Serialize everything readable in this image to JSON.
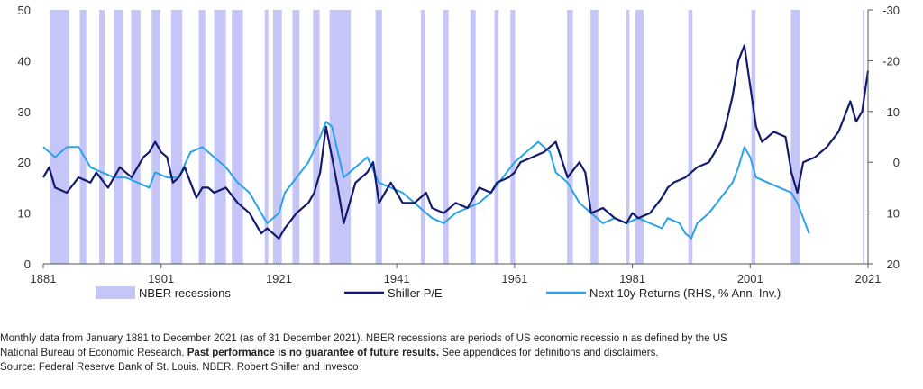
{
  "chart_data": {
    "type": "line",
    "title": "",
    "x_range": [
      1881,
      2021
    ],
    "x_ticks": [
      "1881",
      "1901",
      "1921",
      "1941",
      "1961",
      "1981",
      "2001",
      "2021"
    ],
    "y_left": {
      "range": [
        0,
        50
      ],
      "ticks": [
        "0",
        "10",
        "20",
        "30",
        "40",
        "50"
      ]
    },
    "y_right": {
      "range": [
        20,
        -30
      ],
      "inverted": true,
      "ticks": [
        "20",
        "10",
        "0",
        "-10",
        "-20",
        "-30"
      ]
    },
    "grid": false,
    "legend_position": "bottom",
    "legend": {
      "recessions": "NBER recessions",
      "pe": "Shiller P/E",
      "returns": "Next 10y Returns (RHS, % Ann, Inv.)"
    },
    "colors": {
      "recessions": "#c5c5f7",
      "pe": "#141a6e",
      "returns": "#2aa3e8"
    },
    "recessions": [
      [
        1882.2,
        1885.4
      ],
      [
        1887.2,
        1888.3
      ],
      [
        1890.5,
        1891.4
      ],
      [
        1893.0,
        1894.5
      ],
      [
        1895.9,
        1897.5
      ],
      [
        1899.4,
        1900.9
      ],
      [
        1902.7,
        1904.6
      ],
      [
        1907.4,
        1908.5
      ],
      [
        1910.0,
        1912.0
      ],
      [
        1913.0,
        1914.9
      ],
      [
        1918.6,
        1919.2
      ],
      [
        1920.0,
        1921.5
      ],
      [
        1923.3,
        1924.5
      ],
      [
        1926.8,
        1927.9
      ],
      [
        1929.6,
        1933.2
      ],
      [
        1937.4,
        1938.5
      ],
      [
        1945.1,
        1945.8
      ],
      [
        1948.9,
        1949.8
      ],
      [
        1953.5,
        1954.4
      ],
      [
        1957.6,
        1958.3
      ],
      [
        1960.3,
        1961.1
      ],
      [
        1969.9,
        1970.9
      ],
      [
        1973.9,
        1975.2
      ],
      [
        1980.0,
        1980.5
      ],
      [
        1981.5,
        1982.9
      ],
      [
        1990.5,
        1991.2
      ],
      [
        2001.2,
        2001.9
      ],
      [
        2007.9,
        2009.5
      ],
      [
        2020.1,
        2020.4
      ]
    ],
    "series": [
      {
        "name": "Shiller P/E",
        "axis": "left",
        "x": [
          1881,
          1882,
          1883,
          1885,
          1887,
          1889,
          1890,
          1892,
          1894,
          1896,
          1898,
          1899,
          1900,
          1901,
          1902,
          1903,
          1904,
          1905,
          1906,
          1907,
          1908,
          1909,
          1910,
          1912,
          1914,
          1916,
          1918,
          1919,
          1920,
          1921,
          1922,
          1924,
          1926,
          1927,
          1928,
          1929,
          1930,
          1931,
          1932,
          1933,
          1934,
          1936,
          1937,
          1938,
          1940,
          1942,
          1944,
          1946,
          1947,
          1949,
          1951,
          1953,
          1955,
          1957,
          1958,
          1960,
          1961,
          1962,
          1964,
          1966,
          1968,
          1970,
          1972,
          1973,
          1974,
          1976,
          1978,
          1980,
          1981,
          1982,
          1984,
          1986,
          1987,
          1988,
          1990,
          1992,
          1994,
          1996,
          1997,
          1998,
          1999,
          2000,
          2001,
          2002,
          2003,
          2005,
          2007,
          2008,
          2009,
          2010,
          2012,
          2014,
          2016,
          2017,
          2018,
          2019,
          2020,
          2021
        ],
        "values": [
          17,
          19,
          15,
          14,
          17,
          16,
          18,
          15,
          19,
          17,
          21,
          22,
          24,
          22,
          21,
          16,
          17,
          19,
          16,
          13,
          15,
          15,
          14,
          15,
          12,
          10,
          6,
          7,
          6,
          5,
          7,
          10,
          12,
          14,
          18,
          27,
          21,
          15,
          8,
          12,
          16,
          18,
          20,
          12,
          16,
          12,
          12,
          14,
          11,
          10,
          12,
          11,
          15,
          14,
          16,
          17,
          18,
          20,
          21,
          22,
          24,
          17,
          20,
          18,
          10,
          11,
          9,
          8,
          10,
          9,
          10,
          13,
          15,
          16,
          17,
          19,
          20,
          24,
          28,
          33,
          40,
          43,
          35,
          27,
          24,
          26,
          25,
          18,
          14,
          20,
          21,
          23,
          26,
          29,
          32,
          28,
          30,
          38
        ]
      },
      {
        "name": "Next 10y Returns (RHS, % Ann, Inv.)",
        "axis": "right",
        "x": [
          1881,
          1883,
          1885,
          1887,
          1889,
          1891,
          1893,
          1895,
          1897,
          1899,
          1900,
          1902,
          1904,
          1906,
          1908,
          1910,
          1912,
          1914,
          1916,
          1918,
          1919,
          1921,
          1922,
          1924,
          1926,
          1928,
          1929,
          1930,
          1931,
          1932,
          1934,
          1936,
          1938,
          1940,
          1942,
          1944,
          1946,
          1947,
          1949,
          1951,
          1953,
          1955,
          1957,
          1959,
          1961,
          1963,
          1965,
          1967,
          1968,
          1970,
          1972,
          1974,
          1976,
          1978,
          1980,
          1982,
          1984,
          1986,
          1987,
          1989,
          1990,
          1991,
          1992,
          1994,
          1996,
          1998,
          1999,
          2000,
          2001,
          2002,
          2004,
          2006,
          2008,
          2009,
          2010,
          2011
        ],
        "values": [
          -3,
          -1,
          -3,
          -3,
          1,
          2,
          3,
          3,
          4,
          5,
          2,
          3,
          3,
          -2,
          -3,
          -1,
          1,
          4,
          6,
          10,
          12,
          10,
          6,
          3,
          0,
          -5,
          -8,
          -7,
          -2,
          3,
          1,
          -1,
          4,
          5,
          6,
          8,
          10,
          11,
          12,
          10,
          9,
          8,
          6,
          3,
          0,
          -2,
          -4,
          -2,
          2,
          4,
          8,
          10,
          12,
          11,
          12,
          11,
          12,
          13,
          11,
          12,
          14,
          15,
          12,
          10,
          7,
          4,
          1,
          -3,
          -1,
          3,
          4,
          5,
          6,
          8,
          11,
          14
        ]
      }
    ]
  },
  "footnote": {
    "line1": "Monthly data from January 1881 to December 2021 (as of 31 December 2021). NBER recessions are periods of US economic recessio n as defined by the US",
    "line2a": "National Bureau of Economic Research. ",
    "line2b": "Past performance is no guarantee of future results.",
    "line2c": " See appendices for definitions and disclaimers.",
    "line3": "Source: Federal Reserve Bank of St. Louis. NBER. Robert Shiller and Invesco"
  }
}
